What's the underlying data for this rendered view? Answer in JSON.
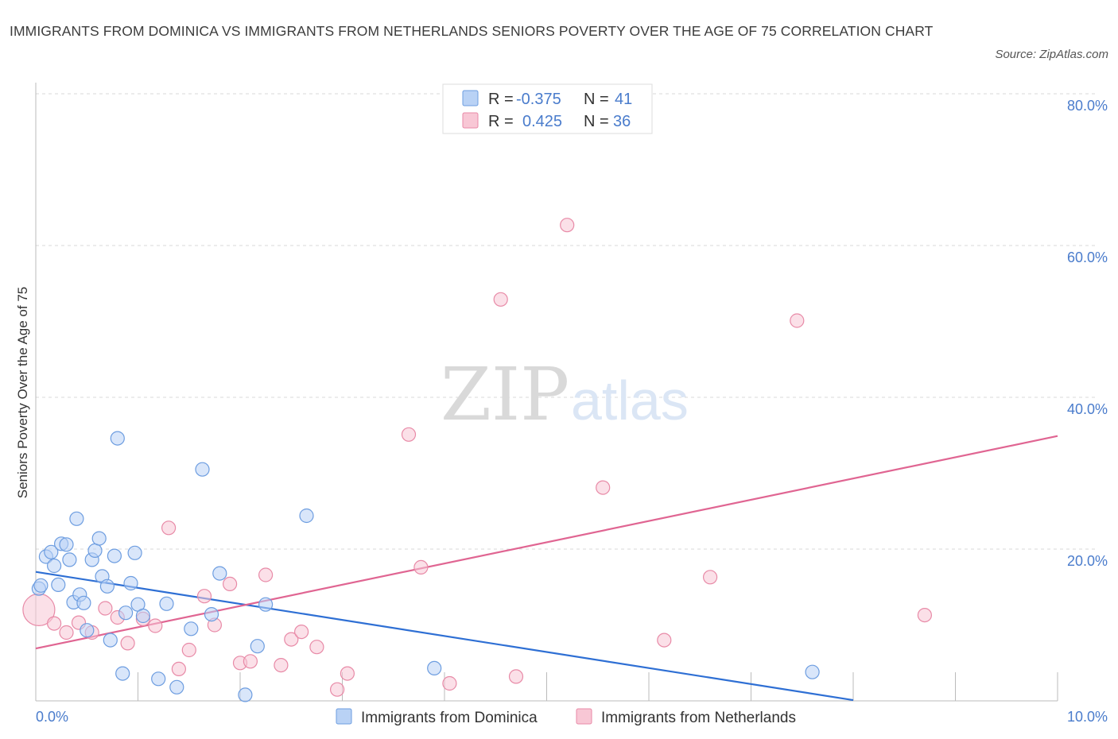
{
  "title": "IMMIGRANTS FROM DOMINICA VS IMMIGRANTS FROM NETHERLANDS SENIORS POVERTY OVER THE AGE OF 75 CORRELATION CHART",
  "source": "Source: ZipAtlas.com",
  "watermark": {
    "zip": "ZIP",
    "atlas": "atlas"
  },
  "legend": {
    "rows": [
      {
        "r_label": "R =",
        "r_value": "-0.375",
        "n_label": "N =",
        "n_value": "41"
      },
      {
        "r_label": "R =",
        "r_value": "0.425",
        "n_label": "N =",
        "n_value": "36"
      }
    ]
  },
  "colors": {
    "dominica_fill": "#b9d2f5",
    "dominica_stroke": "#6d9de0",
    "dominica_line": "#2e6fd4",
    "netherlands_fill": "#f8c7d5",
    "netherlands_stroke": "#e88aa7",
    "netherlands_line": "#e06592"
  },
  "chart_data": {
    "type": "scatter",
    "title": "IMMIGRANTS FROM DOMINICA VS IMMIGRANTS FROM NETHERLANDS SENIORS POVERTY OVER THE AGE OF 75 CORRELATION CHART",
    "xlabel": "",
    "ylabel": "Seniors Poverty Over the Age of 75",
    "xlim": [
      0,
      10
    ],
    "ylim": [
      0,
      80
    ],
    "x_tick_labels": [
      "0.0%",
      "10.0%"
    ],
    "y_ticks": [
      20,
      40,
      60,
      80
    ],
    "y_tick_labels": [
      "20.0%",
      "40.0%",
      "60.0%",
      "80.0%"
    ],
    "grid": true,
    "legend_position": "top-center",
    "series": [
      {
        "name": "Immigrants from Dominica",
        "points": [
          [
            0.03,
            14.8
          ],
          [
            0.05,
            15.2
          ],
          [
            0.1,
            19.0
          ],
          [
            0.15,
            19.6
          ],
          [
            0.18,
            17.8
          ],
          [
            0.22,
            15.3
          ],
          [
            0.25,
            20.7
          ],
          [
            0.3,
            20.6
          ],
          [
            0.33,
            18.6
          ],
          [
            0.37,
            13.0
          ],
          [
            0.4,
            24.0
          ],
          [
            0.43,
            14.0
          ],
          [
            0.47,
            12.9
          ],
          [
            0.5,
            9.3
          ],
          [
            0.55,
            18.6
          ],
          [
            0.58,
            19.8
          ],
          [
            0.62,
            21.4
          ],
          [
            0.65,
            16.4
          ],
          [
            0.7,
            15.1
          ],
          [
            0.73,
            8.0
          ],
          [
            0.77,
            19.1
          ],
          [
            0.8,
            34.6
          ],
          [
            0.85,
            3.6
          ],
          [
            0.88,
            11.6
          ],
          [
            0.93,
            15.5
          ],
          [
            0.97,
            19.5
          ],
          [
            1.0,
            12.7
          ],
          [
            1.05,
            11.2
          ],
          [
            1.2,
            2.9
          ],
          [
            1.28,
            12.8
          ],
          [
            1.38,
            1.8
          ],
          [
            1.52,
            9.5
          ],
          [
            1.63,
            30.5
          ],
          [
            1.72,
            11.4
          ],
          [
            1.8,
            16.8
          ],
          [
            2.05,
            0.8
          ],
          [
            2.17,
            7.2
          ],
          [
            2.25,
            12.7
          ],
          [
            2.65,
            24.4
          ],
          [
            3.9,
            4.3
          ],
          [
            7.6,
            3.8
          ]
        ],
        "trend": {
          "x": [
            0.0,
            8.0
          ],
          "y": [
            17.0,
            0.1
          ]
        }
      },
      {
        "name": "Immigrants from Netherlands",
        "points": [
          [
            0.03,
            12.0
          ],
          [
            0.18,
            10.2
          ],
          [
            0.3,
            9.0
          ],
          [
            0.42,
            10.3
          ],
          [
            0.55,
            9.0
          ],
          [
            0.68,
            12.2
          ],
          [
            0.8,
            11.0
          ],
          [
            0.9,
            7.6
          ],
          [
            1.05,
            10.8
          ],
          [
            1.17,
            9.9
          ],
          [
            1.3,
            22.8
          ],
          [
            1.4,
            4.2
          ],
          [
            1.5,
            6.7
          ],
          [
            1.65,
            13.8
          ],
          [
            1.75,
            10.0
          ],
          [
            1.9,
            15.4
          ],
          [
            2.0,
            5.0
          ],
          [
            2.1,
            5.2
          ],
          [
            2.25,
            16.6
          ],
          [
            2.4,
            4.7
          ],
          [
            2.5,
            8.1
          ],
          [
            2.6,
            9.1
          ],
          [
            2.75,
            7.1
          ],
          [
            2.95,
            1.5
          ],
          [
            3.05,
            3.6
          ],
          [
            3.65,
            35.1
          ],
          [
            3.77,
            17.6
          ],
          [
            4.05,
            2.3
          ],
          [
            4.55,
            52.9
          ],
          [
            4.7,
            3.2
          ],
          [
            5.2,
            62.7
          ],
          [
            5.55,
            28.1
          ],
          [
            6.15,
            8.0
          ],
          [
            6.6,
            16.3
          ],
          [
            7.45,
            50.1
          ],
          [
            8.7,
            11.3
          ]
        ],
        "trend": {
          "x": [
            0.0,
            10.0
          ],
          "y": [
            6.9,
            34.9
          ]
        }
      }
    ]
  },
  "bottom_legend": {
    "items": [
      "Immigrants from Dominica",
      "Immigrants from Netherlands"
    ]
  }
}
